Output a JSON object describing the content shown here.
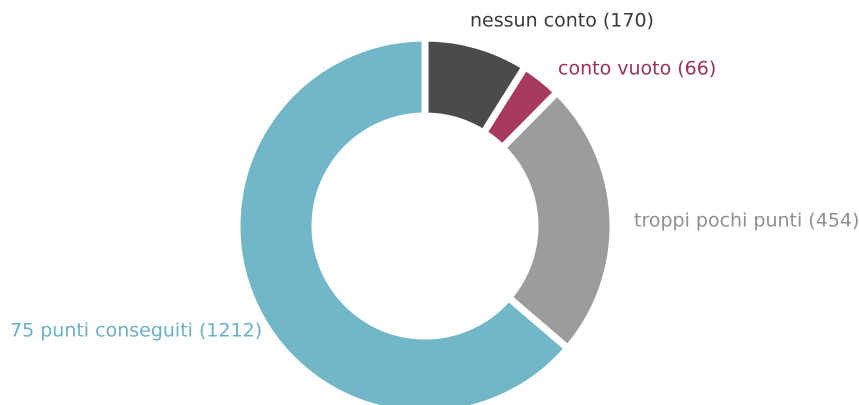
{
  "chart_data": {
    "type": "donut",
    "categories": [
      "nessun conto (170)",
      "conto vuoto (66)",
      "troppi pochi punti (454)",
      "75 punti conseguiti (1212)"
    ],
    "values": [
      170,
      66,
      454,
      1212
    ],
    "colors": [
      "#4b4b49",
      "#a83a62",
      "#9c9c9c",
      "#72b7c7"
    ],
    "label_colors": [
      "#3a3a3a",
      "#9b3058",
      "#8f8f8f",
      "#69b1c2"
    ]
  }
}
